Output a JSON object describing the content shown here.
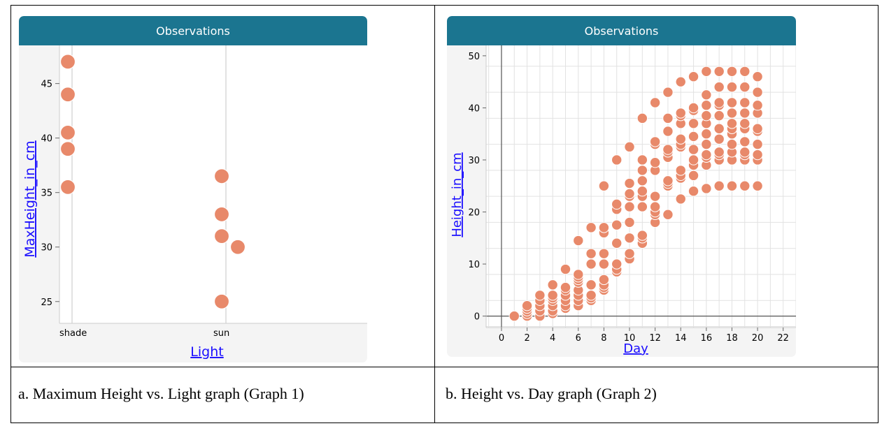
{
  "panels": [
    {
      "header_title": "Observations",
      "caption": "a. Maximum Height vs. Light graph (Graph 1)"
    },
    {
      "header_title": "Observations",
      "caption": "b. Height vs. Day graph (Graph 2)"
    }
  ],
  "colors": {
    "header": "#1b7590",
    "point": "#e8896a",
    "point_stroke": "#ffffff",
    "axis_link": "#1a0dff",
    "panel_bg": "#f4f4f4",
    "plot_bg": "#ffffff"
  },
  "chart_data": [
    {
      "type": "scatter",
      "title": "Observations",
      "xlabel": "Light",
      "ylabel": "MaxHeight_in_cm",
      "categories": [
        "shade",
        "sun"
      ],
      "ylim": [
        23,
        48.5
      ],
      "yticks": [
        25,
        30,
        35,
        40,
        45
      ],
      "points": [
        {
          "x": "shade",
          "y": 47
        },
        {
          "x": "shade",
          "y": 44
        },
        {
          "x": "shade",
          "y": 40.5
        },
        {
          "x": "shade",
          "y": 39
        },
        {
          "x": "shade",
          "y": 35.5
        },
        {
          "x": "sun",
          "y": 36.5
        },
        {
          "x": "sun",
          "y": 33
        },
        {
          "x": "sun",
          "y": 31
        },
        {
          "x": "sun",
          "y": 30
        },
        {
          "x": "sun",
          "y": 25
        }
      ],
      "grid": false
    },
    {
      "type": "scatter",
      "title": "Observations",
      "xlabel": "Day",
      "ylabel": "Height_in_cm",
      "xlim": [
        -1.2,
        23
      ],
      "ylim": [
        -2.2,
        52
      ],
      "xticks": [
        0,
        2,
        4,
        6,
        8,
        10,
        12,
        14,
        16,
        18,
        20,
        22
      ],
      "yticks": [
        0,
        10,
        20,
        30,
        40,
        50
      ],
      "grid": true,
      "points": [
        [
          1,
          0
        ],
        [
          2,
          0
        ],
        [
          2,
          0.5
        ],
        [
          2,
          1
        ],
        [
          2,
          1.5
        ],
        [
          2,
          2
        ],
        [
          3,
          0
        ],
        [
          3,
          1
        ],
        [
          3,
          2
        ],
        [
          3,
          3
        ],
        [
          3,
          4
        ],
        [
          4,
          0.5
        ],
        [
          4,
          1
        ],
        [
          4,
          2
        ],
        [
          4,
          3
        ],
        [
          4,
          3.5
        ],
        [
          4,
          4
        ],
        [
          4,
          6
        ],
        [
          5,
          1.5
        ],
        [
          5,
          2
        ],
        [
          5,
          3
        ],
        [
          5,
          4
        ],
        [
          5,
          5
        ],
        [
          5,
          5.5
        ],
        [
          5,
          9
        ],
        [
          6,
          2
        ],
        [
          6,
          3
        ],
        [
          6,
          4
        ],
        [
          6,
          5
        ],
        [
          6,
          6.5
        ],
        [
          6,
          7
        ],
        [
          6,
          7.5
        ],
        [
          6,
          8
        ],
        [
          6,
          14.5
        ],
        [
          7,
          3
        ],
        [
          7,
          3.5
        ],
        [
          7,
          4
        ],
        [
          7,
          6
        ],
        [
          7,
          10
        ],
        [
          7,
          12
        ],
        [
          7,
          17
        ],
        [
          8,
          5
        ],
        [
          8,
          5.5
        ],
        [
          8,
          6
        ],
        [
          8,
          7
        ],
        [
          8,
          10
        ],
        [
          8,
          12
        ],
        [
          8,
          16
        ],
        [
          8,
          17
        ],
        [
          8,
          25
        ],
        [
          9,
          8.5
        ],
        [
          9,
          9
        ],
        [
          9,
          10
        ],
        [
          9,
          14
        ],
        [
          9,
          17.5
        ],
        [
          9,
          20.5
        ],
        [
          9,
          21.5
        ],
        [
          9,
          30
        ],
        [
          10,
          11
        ],
        [
          10,
          12
        ],
        [
          10,
          15
        ],
        [
          10,
          18
        ],
        [
          10,
          21
        ],
        [
          10,
          23
        ],
        [
          10,
          23.5
        ],
        [
          10,
          25.5
        ],
        [
          10,
          32.5
        ],
        [
          11,
          14
        ],
        [
          11,
          15
        ],
        [
          11,
          15.5
        ],
        [
          11,
          21
        ],
        [
          11,
          23
        ],
        [
          11,
          24
        ],
        [
          11,
          26
        ],
        [
          11,
          28
        ],
        [
          11,
          30
        ],
        [
          11,
          38
        ],
        [
          12,
          18
        ],
        [
          12,
          19.5
        ],
        [
          12,
          20
        ],
        [
          12,
          21
        ],
        [
          12,
          23
        ],
        [
          12,
          28
        ],
        [
          12,
          29.5
        ],
        [
          12,
          33
        ],
        [
          12,
          33.5
        ],
        [
          12,
          41
        ],
        [
          13,
          19.5
        ],
        [
          13,
          25
        ],
        [
          13,
          25.5
        ],
        [
          13,
          26
        ],
        [
          13,
          30.5
        ],
        [
          13,
          31.5
        ],
        [
          13,
          32
        ],
        [
          13,
          35.5
        ],
        [
          13,
          38
        ],
        [
          13,
          43
        ],
        [
          14,
          22.5
        ],
        [
          14,
          26.5
        ],
        [
          14,
          27
        ],
        [
          14,
          28
        ],
        [
          14,
          32.5
        ],
        [
          14,
          33
        ],
        [
          14,
          34
        ],
        [
          14,
          37
        ],
        [
          14,
          38.5
        ],
        [
          14,
          39
        ],
        [
          14,
          45
        ],
        [
          15,
          24
        ],
        [
          15,
          27
        ],
        [
          15,
          29
        ],
        [
          15,
          30
        ],
        [
          15,
          32
        ],
        [
          15,
          34.5
        ],
        [
          15,
          37
        ],
        [
          15,
          39.5
        ],
        [
          15,
          40
        ],
        [
          15,
          46
        ],
        [
          16,
          24.5
        ],
        [
          16,
          29
        ],
        [
          16,
          30.5
        ],
        [
          16,
          31
        ],
        [
          16,
          33
        ],
        [
          16,
          35
        ],
        [
          16,
          37
        ],
        [
          16,
          38.5
        ],
        [
          16,
          40.5
        ],
        [
          16,
          42.5
        ],
        [
          16,
          47
        ],
        [
          17,
          25
        ],
        [
          17,
          30
        ],
        [
          17,
          31
        ],
        [
          17,
          31.5
        ],
        [
          17,
          34
        ],
        [
          17,
          36
        ],
        [
          17,
          38.5
        ],
        [
          17,
          40.5
        ],
        [
          17,
          41
        ],
        [
          17,
          44
        ],
        [
          17,
          47
        ],
        [
          18,
          25
        ],
        [
          18,
          30
        ],
        [
          18,
          31.5
        ],
        [
          18,
          33
        ],
        [
          18,
          35
        ],
        [
          18,
          36
        ],
        [
          18,
          37
        ],
        [
          18,
          39
        ],
        [
          18,
          41
        ],
        [
          18,
          44
        ],
        [
          18,
          47
        ],
        [
          19,
          25
        ],
        [
          19,
          30
        ],
        [
          19,
          31
        ],
        [
          19,
          31.5
        ],
        [
          19,
          33.5
        ],
        [
          19,
          36
        ],
        [
          19,
          37
        ],
        [
          19,
          39
        ],
        [
          19,
          41
        ],
        [
          19,
          44
        ],
        [
          19,
          47
        ],
        [
          20,
          25
        ],
        [
          20,
          30
        ],
        [
          20,
          31
        ],
        [
          20,
          33
        ],
        [
          20,
          35.5
        ],
        [
          20,
          36
        ],
        [
          20,
          39
        ],
        [
          20,
          40.5
        ],
        [
          20,
          43
        ],
        [
          20,
          46
        ]
      ]
    }
  ]
}
